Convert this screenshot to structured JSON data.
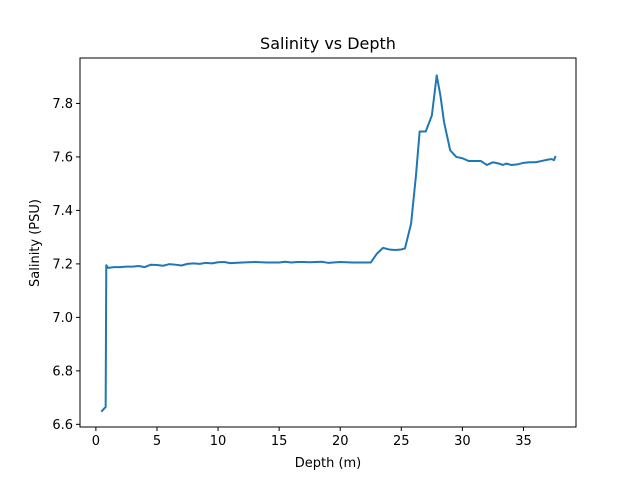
{
  "chart_data": {
    "type": "line",
    "title": "Salinity vs Depth",
    "xlabel": "Depth (m)",
    "ylabel": "Salinity (PSU)",
    "xlim": [
      -1.3,
      39.3
    ],
    "ylim": [
      6.59,
      7.97
    ],
    "xticks": [
      0,
      5,
      10,
      15,
      20,
      25,
      30,
      35
    ],
    "yticks": [
      6.6,
      6.8,
      7.0,
      7.2,
      7.4,
      7.6,
      7.8
    ],
    "ytick_labels": [
      "6.6",
      "6.8",
      "7.0",
      "7.2",
      "7.4",
      "7.6",
      "7.8"
    ],
    "grid": false,
    "color": "#1f77b4",
    "series": [
      {
        "x": [
          0.5,
          0.8,
          0.85,
          1.0,
          1.5,
          2.0,
          2.5,
          3.0,
          3.5,
          4.0,
          4.5,
          5.0,
          5.5,
          6.0,
          6.5,
          7.0,
          7.5,
          8.0,
          8.5,
          9.0,
          9.5,
          10.0,
          10.5,
          11.0,
          12.0,
          13.0,
          14.0,
          15.0,
          15.5,
          16.0,
          16.5,
          17.0,
          17.5,
          18.0,
          18.5,
          19.0,
          20.0,
          21.0,
          22.0,
          22.5,
          23.0,
          23.5,
          24.0,
          24.5,
          25.0,
          25.3,
          25.8,
          26.2,
          26.5,
          26.8,
          27.0,
          27.5,
          27.9,
          28.2,
          28.5,
          29.0,
          29.5,
          30.0,
          30.5,
          31.0,
          31.5,
          32.0,
          32.5,
          33.0,
          33.3,
          33.6,
          34.0,
          34.5,
          35.0,
          35.5,
          36.0,
          36.5,
          37.0,
          37.3,
          37.5,
          37.6
        ],
        "y": [
          6.65,
          6.665,
          7.195,
          7.185,
          7.188,
          7.188,
          7.19,
          7.19,
          7.192,
          7.188,
          7.197,
          7.196,
          7.193,
          7.199,
          7.197,
          7.194,
          7.2,
          7.202,
          7.2,
          7.204,
          7.202,
          7.206,
          7.207,
          7.203,
          7.205,
          7.207,
          7.205,
          7.205,
          7.208,
          7.205,
          7.207,
          7.207,
          7.206,
          7.207,
          7.208,
          7.204,
          7.207,
          7.205,
          7.205,
          7.205,
          7.238,
          7.26,
          7.254,
          7.252,
          7.254,
          7.258,
          7.35,
          7.53,
          7.695,
          7.695,
          7.695,
          7.755,
          7.905,
          7.83,
          7.73,
          7.625,
          7.6,
          7.595,
          7.585,
          7.585,
          7.585,
          7.57,
          7.58,
          7.575,
          7.57,
          7.575,
          7.57,
          7.572,
          7.578,
          7.58,
          7.58,
          7.585,
          7.59,
          7.592,
          7.588,
          7.6
        ]
      }
    ]
  }
}
